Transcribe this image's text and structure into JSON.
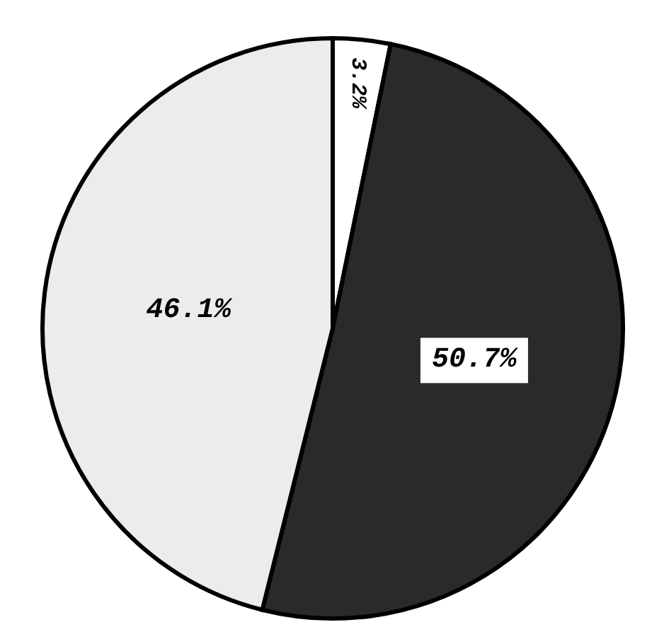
{
  "chart_data": {
    "type": "pie",
    "categories": [
      null,
      null,
      null
    ],
    "values": [
      3.2,
      50.7,
      46.1
    ],
    "colors": [
      "#ffffff",
      "#2a2a2a",
      "#ececec"
    ],
    "value_labels": [
      "3.2%",
      "50.7%",
      "46.1%"
    ]
  }
}
